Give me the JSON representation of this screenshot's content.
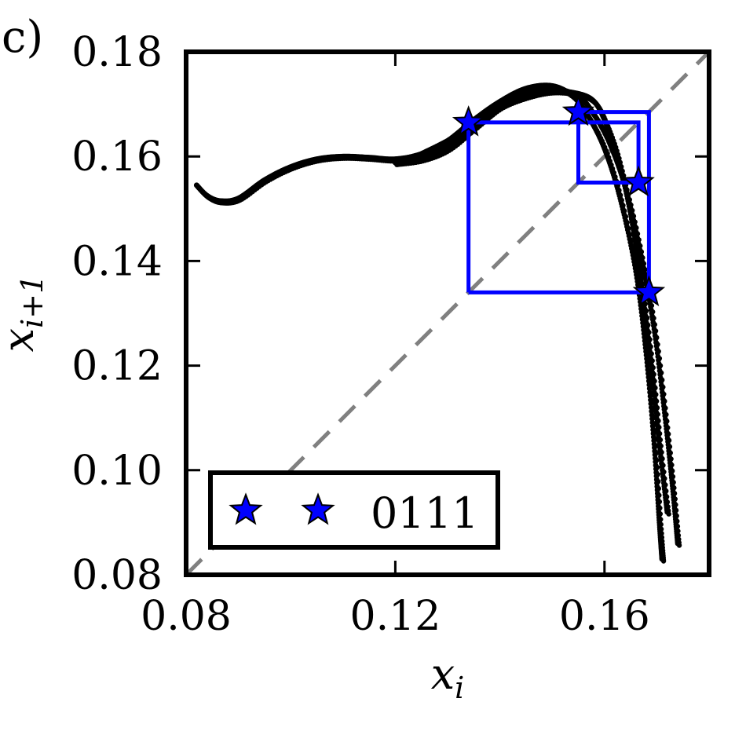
{
  "panel_label": "c)",
  "chart_data": {
    "type": "scatter",
    "xlabel_base": "x",
    "xlabel_sub": "i",
    "ylabel_base": "x",
    "ylabel_sub": "i+1",
    "xlim": [
      0.08,
      0.18
    ],
    "ylim": [
      0.08,
      0.18
    ],
    "xticks": [
      0.08,
      0.12,
      0.16
    ],
    "xtick_labels": [
      "0.08",
      "0.12",
      "0.16"
    ],
    "yticks": [
      0.08,
      0.1,
      0.12,
      0.14,
      0.16,
      0.18
    ],
    "ytick_labels": [
      "0.08",
      "0.10",
      "0.12",
      "0.14",
      "0.16",
      "0.18"
    ],
    "diagonal": {
      "from": [
        0.08,
        0.08
      ],
      "to": [
        0.18,
        0.18
      ],
      "color": "#808080",
      "style": "dashed"
    },
    "return_map_color": "#000000",
    "return_map_curves": [
      [
        [
          0.082,
          0.1545
        ],
        [
          0.084,
          0.1525
        ],
        [
          0.0865,
          0.1515
        ],
        [
          0.09,
          0.152
        ],
        [
          0.095,
          0.1555
        ],
        [
          0.1,
          0.158
        ],
        [
          0.105,
          0.1595
        ],
        [
          0.11,
          0.16
        ],
        [
          0.115,
          0.1598
        ],
        [
          0.12,
          0.1595
        ],
        [
          0.125,
          0.1605
        ],
        [
          0.13,
          0.163
        ],
        [
          0.135,
          0.167
        ],
        [
          0.14,
          0.1705
        ],
        [
          0.145,
          0.173
        ],
        [
          0.15,
          0.1735
        ],
        [
          0.154,
          0.1715
        ],
        [
          0.157,
          0.1675
        ],
        [
          0.16,
          0.1615
        ],
        [
          0.163,
          0.152
        ],
        [
          0.166,
          0.138
        ],
        [
          0.168,
          0.122
        ],
        [
          0.1695,
          0.105
        ],
        [
          0.1705,
          0.09
        ],
        [
          0.171,
          0.083
        ]
      ],
      [
        [
          0.12,
          0.1588
        ],
        [
          0.125,
          0.1595
        ],
        [
          0.13,
          0.1615
        ],
        [
          0.135,
          0.1655
        ],
        [
          0.14,
          0.1695
        ],
        [
          0.145,
          0.172
        ],
        [
          0.15,
          0.173
        ],
        [
          0.155,
          0.1715
        ],
        [
          0.158,
          0.168
        ],
        [
          0.161,
          0.1625
        ],
        [
          0.164,
          0.154
        ],
        [
          0.167,
          0.141
        ],
        [
          0.1695,
          0.127
        ],
        [
          0.1715,
          0.111
        ],
        [
          0.173,
          0.097
        ],
        [
          0.174,
          0.086
        ]
      ],
      [
        [
          0.125,
          0.1605
        ],
        [
          0.13,
          0.163
        ],
        [
          0.135,
          0.166
        ],
        [
          0.14,
          0.1695
        ],
        [
          0.145,
          0.1715
        ],
        [
          0.15,
          0.1725
        ],
        [
          0.155,
          0.172
        ],
        [
          0.158,
          0.1705
        ],
        [
          0.16,
          0.167
        ],
        [
          0.1625,
          0.16
        ],
        [
          0.165,
          0.149
        ],
        [
          0.167,
          0.136
        ],
        [
          0.169,
          0.12
        ],
        [
          0.1705,
          0.105
        ],
        [
          0.172,
          0.092
        ]
      ]
    ],
    "orbit_color": "#0000ff",
    "orbit_path": [
      [
        0.134,
        0.134
      ],
      [
        0.134,
        0.1665
      ],
      [
        0.1665,
        0.1665
      ],
      [
        0.1665,
        0.155
      ],
      [
        0.155,
        0.155
      ],
      [
        0.155,
        0.1685
      ],
      [
        0.1685,
        0.1685
      ],
      [
        0.1685,
        0.134
      ],
      [
        0.134,
        0.134
      ]
    ],
    "orbit_points": [
      [
        0.134,
        0.1665
      ],
      [
        0.155,
        0.1685
      ],
      [
        0.1665,
        0.155
      ],
      [
        0.1685,
        0.134
      ]
    ],
    "legend": {
      "position": "lower-left",
      "label": "0111",
      "marker": "star",
      "color": "#0000ff"
    }
  }
}
